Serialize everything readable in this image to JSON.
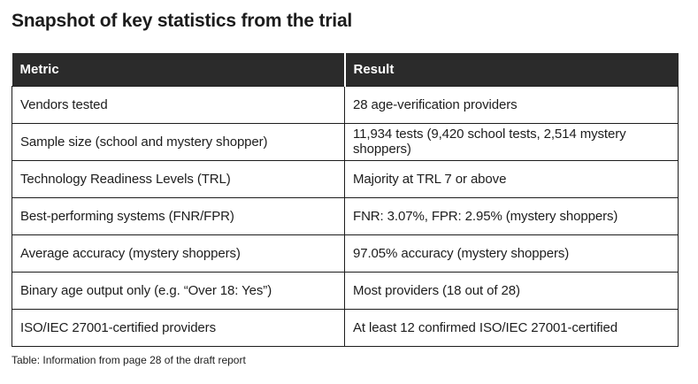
{
  "page": {
    "title": "Snapshot of key statistics from the trial",
    "caption": "Table: Information from page 28 of the draft report"
  },
  "colors": {
    "header_bg": "#2b2b2b",
    "header_text": "#ffffff",
    "border": "#1d1d1d",
    "body_text": "#1d1d1d",
    "background": "#ffffff"
  },
  "table": {
    "columns": [
      "Metric",
      "Result"
    ],
    "rows": [
      {
        "metric": "Vendors tested",
        "result": "28 age-verification providers"
      },
      {
        "metric": "Sample size (school and mystery shopper)",
        "result": "11,934 tests (9,420 school tests, 2,514 mystery shoppers)"
      },
      {
        "metric": "Technology Readiness Levels (TRL)",
        "result": "Majority at TRL 7 or above"
      },
      {
        "metric": "Best-performing systems (FNR/FPR)",
        "result": "FNR: 3.07%, FPR: 2.95% (mystery shoppers)"
      },
      {
        "metric": "Average accuracy (mystery shoppers)",
        "result": "97.05% accuracy (mystery shoppers)"
      },
      {
        "metric": "Binary age output only (e.g. “Over 18: Yes”)",
        "result": "Most providers (18 out of 28)"
      },
      {
        "metric": "ISO/IEC 27001-certified providers",
        "result": "At least 12 confirmed ISO/IEC 27001-certified"
      }
    ]
  }
}
